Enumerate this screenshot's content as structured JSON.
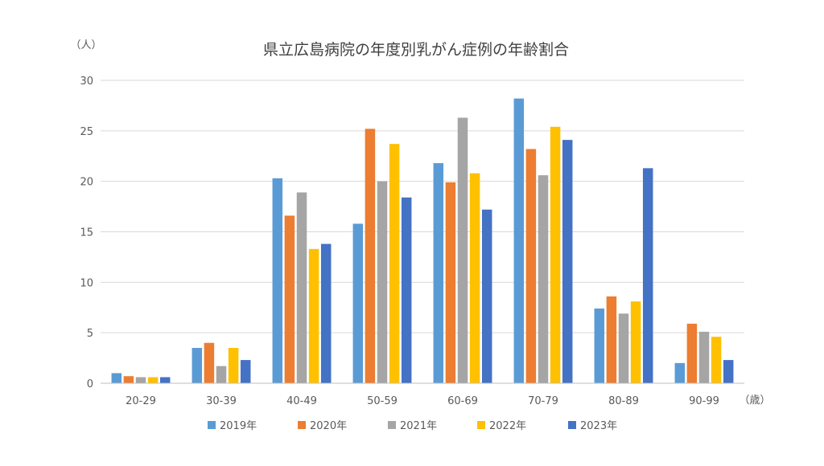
{
  "chart_data": {
    "type": "bar",
    "title": "県立広島病院の年度別乳がん症例の年齢割合",
    "y_unit_label": "（人）",
    "x_unit_label": "（歳）",
    "categories": [
      "20-29",
      "30-39",
      "40-49",
      "50-59",
      "60-69",
      "70-79",
      "80-89",
      "90-99"
    ],
    "ylim": [
      0,
      30
    ],
    "yticks": [
      0,
      5,
      10,
      15,
      20,
      25,
      30
    ],
    "grid": true,
    "legend_position": "bottom",
    "series": [
      {
        "name": "2019年",
        "color": "#5B9BD5",
        "values": [
          1.0,
          3.5,
          20.3,
          15.8,
          21.8,
          28.2,
          7.4,
          2.0
        ]
      },
      {
        "name": "2020年",
        "color": "#ED7D31",
        "values": [
          0.7,
          4.0,
          16.6,
          25.2,
          19.9,
          23.2,
          8.6,
          5.9
        ]
      },
      {
        "name": "2021年",
        "color": "#A5A5A5",
        "values": [
          0.6,
          1.7,
          18.9,
          20.0,
          26.3,
          20.6,
          6.9,
          5.1
        ]
      },
      {
        "name": "2022年",
        "color": "#FFC000",
        "values": [
          0.6,
          3.5,
          13.3,
          23.7,
          20.8,
          25.4,
          8.1,
          4.6
        ]
      },
      {
        "name": "2023年",
        "color": "#4472C4",
        "values": [
          0.6,
          2.3,
          13.8,
          18.4,
          17.2,
          24.1,
          21.3,
          2.3
        ]
      }
    ]
  }
}
